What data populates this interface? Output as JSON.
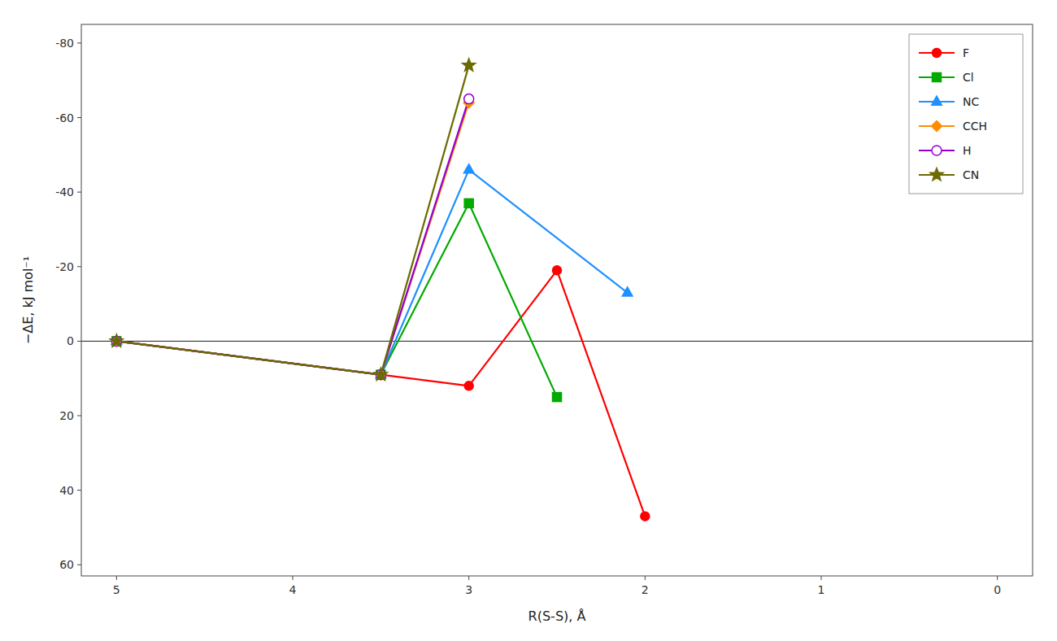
{
  "chart_data": {
    "type": "line",
    "ylabel": "−ΔE, kJ mol⁻¹",
    "xlabel": "R(S-S), Å",
    "xlim": [
      5.2,
      -0.2
    ],
    "ylim": [
      63,
      -85
    ],
    "xticks": [
      5,
      4,
      3,
      2,
      1,
      0
    ],
    "yticks": [
      -80,
      -60,
      -40,
      -20,
      0,
      20,
      40,
      60
    ],
    "grid": false,
    "legend": "upper right",
    "series": [
      {
        "name": "F",
        "color": "#ff0000",
        "marker": "circle",
        "x": [
          5.0,
          3.5,
          3.0,
          2.5,
          2.0
        ],
        "values": [
          0.0,
          9.0,
          12.0,
          -19.0,
          47.0
        ]
      },
      {
        "name": "Cl",
        "color": "#00aa00",
        "marker": "square",
        "x": [
          5.0,
          3.5,
          3.0,
          2.5
        ],
        "values": [
          0.0,
          9.0,
          -37.0,
          15.0
        ]
      },
      {
        "name": "NC",
        "color": "#1e90ff",
        "marker": "triangle",
        "x": [
          5.0,
          3.5,
          3.0,
          2.1
        ],
        "values": [
          0.0,
          9.0,
          -46.0,
          -13.0
        ]
      },
      {
        "name": "CCH",
        "color": "#ff8c00",
        "marker": "diamond",
        "x": [
          5.0,
          3.5,
          3.0
        ],
        "values": [
          0.0,
          9.0,
          -64.0
        ]
      },
      {
        "name": "H",
        "color": "#9400d3",
        "marker": "open-circle",
        "x": [
          5.0,
          3.5,
          3.0
        ],
        "values": [
          0.0,
          9.0,
          -65.0
        ]
      },
      {
        "name": "CN",
        "color": "#6b6b00",
        "marker": "star",
        "x": [
          5.0,
          3.5,
          3.0
        ],
        "values": [
          0.0,
          9.0,
          -74.0
        ]
      }
    ]
  }
}
